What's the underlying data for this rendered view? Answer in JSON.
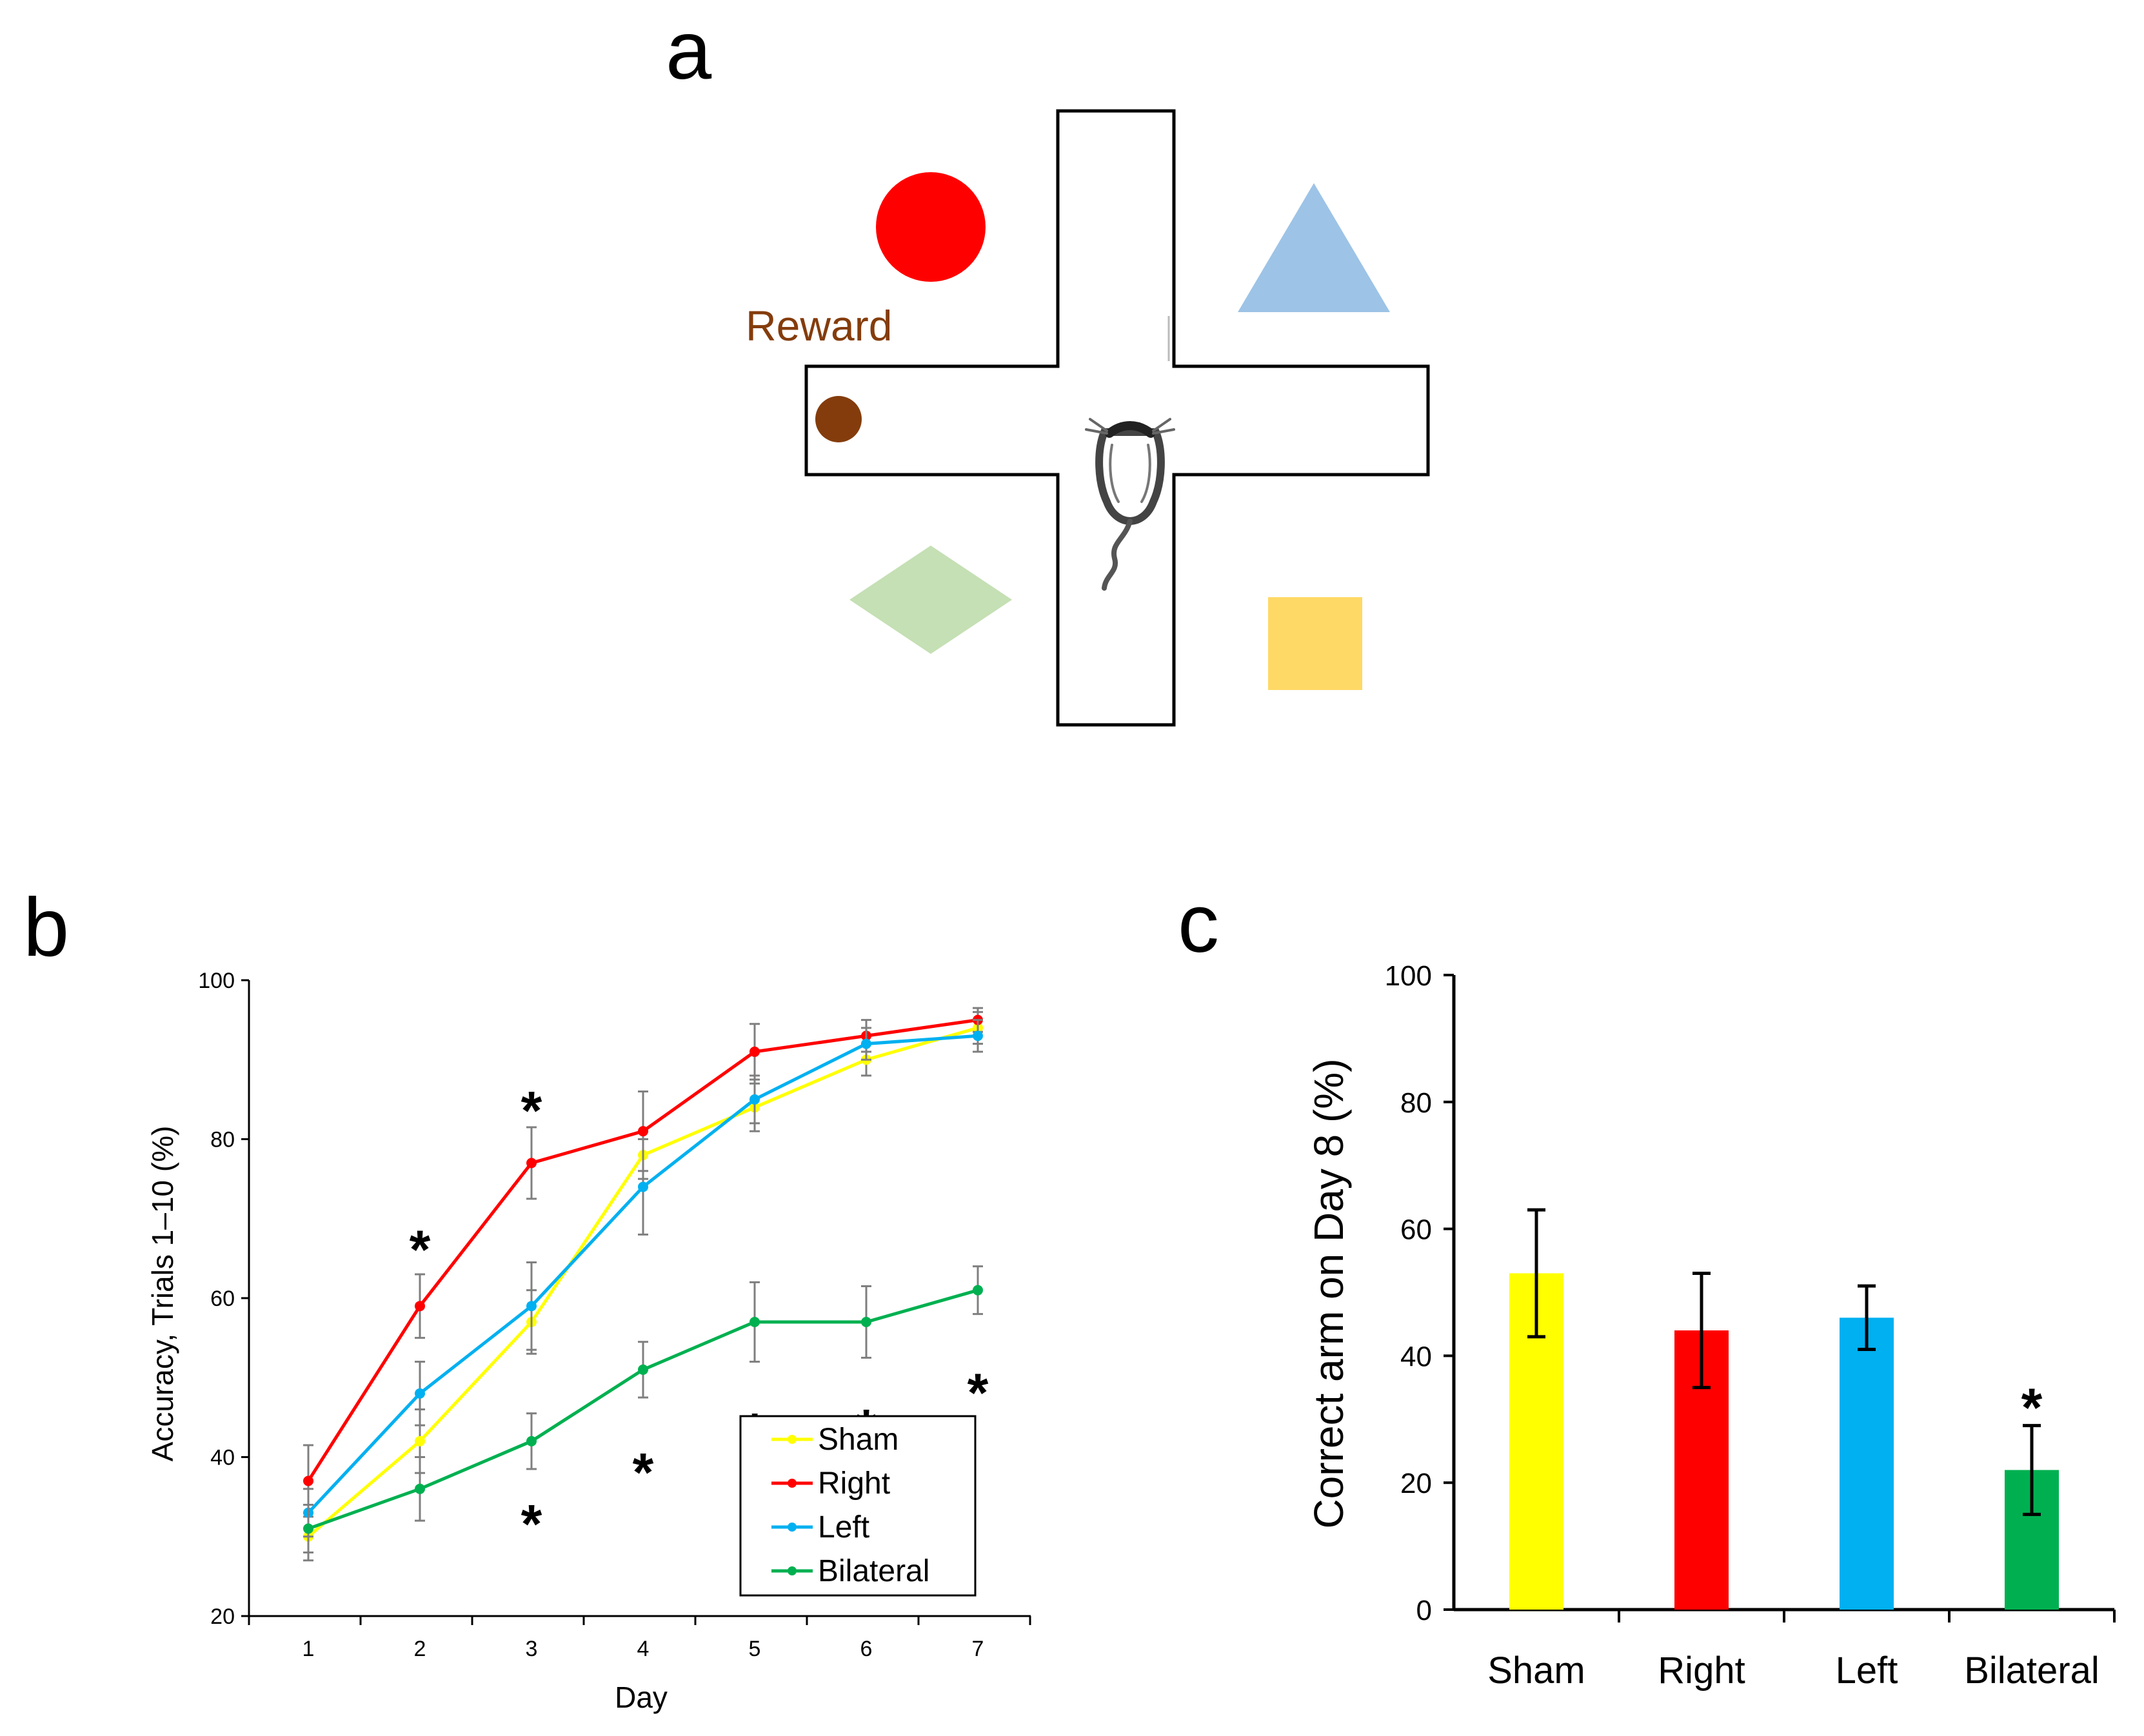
{
  "panels": {
    "a": {
      "letter": "a",
      "reward_label": "Reward",
      "colors": {
        "circle": "#ff0000",
        "triangle": "#9dc3e6",
        "diamond": "#c5e0b4",
        "square": "#ffd966",
        "reward": "#843c0c"
      }
    },
    "b": {
      "letter": "b"
    },
    "c": {
      "letter": "c"
    }
  },
  "chart_data": [
    {
      "id": "b",
      "type": "line",
      "title": "",
      "xlabel": "Day",
      "ylabel": "Accuracy, Trials 1–10 (%)",
      "x": [
        1,
        2,
        3,
        4,
        5,
        6,
        7
      ],
      "ylim": [
        20,
        100
      ],
      "yticks": [
        20,
        40,
        60,
        80,
        100
      ],
      "grid": false,
      "legend_position": "bottom-right",
      "series": [
        {
          "name": "Sham",
          "color": "#ffff00",
          "values": [
            30,
            42,
            57,
            78,
            84,
            90,
            94
          ],
          "errors": [
            3,
            4,
            4,
            3,
            3,
            2,
            2
          ]
        },
        {
          "name": "Right",
          "color": "#ff0000",
          "values": [
            37,
            59,
            77,
            81,
            91,
            93,
            95
          ],
          "errors": [
            4.5,
            4,
            4.5,
            5,
            3.5,
            2,
            1.5
          ]
        },
        {
          "name": "Left",
          "color": "#00b0f0",
          "values": [
            33,
            48,
            59,
            74,
            85,
            92,
            93
          ],
          "errors": [
            3,
            4,
            5.5,
            6,
            3,
            2,
            2
          ]
        },
        {
          "name": "Bilateral",
          "color": "#00b050",
          "values": [
            31,
            36,
            42,
            51,
            57,
            57,
            61
          ],
          "errors": [
            3,
            4,
            3.5,
            3.5,
            5,
            4.5,
            3
          ]
        }
      ],
      "significance_markers": [
        {
          "label": "*",
          "day": 2,
          "y": 67
        },
        {
          "label": "*",
          "day": 3,
          "y": 84.5
        },
        {
          "label": "*",
          "day": 3,
          "y": 32.5
        },
        {
          "label": "*",
          "day": 4,
          "y": 39
        },
        {
          "label": "*",
          "day": 5,
          "y": 44
        },
        {
          "label": "*",
          "day": 6,
          "y": 44.5
        },
        {
          "label": "*",
          "day": 7,
          "y": 49
        }
      ]
    },
    {
      "id": "c",
      "type": "bar",
      "title": "",
      "xlabel": "",
      "ylabel": "Correct arm on Day 8 (%)",
      "categories": [
        "Sham",
        "Right",
        "Left",
        "Bilateral"
      ],
      "values": [
        53,
        44,
        46,
        22
      ],
      "errors": [
        10,
        9,
        5,
        7
      ],
      "colors": [
        "#ffff00",
        "#ff0000",
        "#00b0f0",
        "#00b050"
      ],
      "ylim": [
        0,
        100
      ],
      "yticks": [
        0,
        20,
        40,
        60,
        80,
        100
      ],
      "grid": false,
      "significance_markers": [
        {
          "label": "*",
          "category": "Bilateral",
          "y": 33
        }
      ]
    }
  ]
}
